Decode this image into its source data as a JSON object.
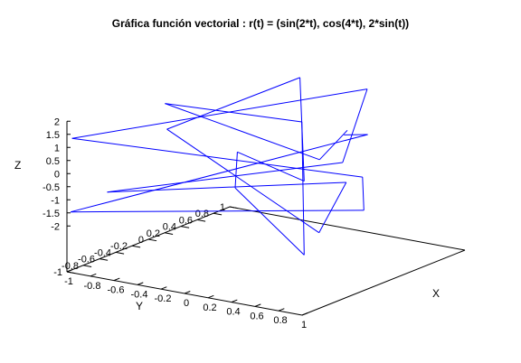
{
  "chart_data": {
    "type": "line",
    "title": "Gráfica función vectorial : r(t) = (sin(2*t), cos(4*t), 2*sin(t))",
    "xlabel": "X",
    "ylabel": "Y",
    "zlabel": "Z",
    "x_ticks": [
      "-1",
      "-0.8",
      "-0.6",
      "-0.4",
      "-0.2",
      "0",
      "0.2",
      "0.4",
      "0.6",
      "0.8",
      "1"
    ],
    "y_ticks": [
      "1",
      "0.8",
      "0.6",
      "0.4",
      "0.2",
      "0",
      "-0.2",
      "-0.4",
      "-0.6",
      "-0.8",
      "-1"
    ],
    "z_ticks": [
      "2",
      "1.5",
      "1",
      "0.5",
      "0",
      "-0.5",
      "-1",
      "-1.5",
      "-2"
    ],
    "xlim": [
      -1,
      1
    ],
    "ylim": [
      -1,
      1
    ],
    "zlim": [
      -2,
      2
    ],
    "series": [
      {
        "color": "#0000ff",
        "points": [
          {
            "x": 0.0,
            "y": 1.0,
            "z": 0.0
          },
          {
            "x": 0.909,
            "y": -0.654,
            "z": 1.683
          },
          {
            "x": -0.757,
            "y": -0.146,
            "z": 1.819
          },
          {
            "x": -0.279,
            "y": 0.844,
            "z": 0.282
          },
          {
            "x": 0.989,
            "y": -0.958,
            "z": -1.514
          },
          {
            "x": -0.544,
            "y": 0.408,
            "z": -1.918
          },
          {
            "x": -0.537,
            "y": 0.424,
            "z": -0.559
          },
          {
            "x": 0.991,
            "y": -0.962,
            "z": 1.314
          },
          {
            "x": -0.288,
            "y": 0.834,
            "z": 1.979
          },
          {
            "x": -0.751,
            "y": -0.132,
            "z": 0.824
          },
          {
            "x": 0.913,
            "y": -0.667,
            "z": -1.088
          },
          {
            "x": -0.009,
            "y": 1.0,
            "z": -2.0
          },
          {
            "x": -0.906,
            "y": -0.641,
            "z": -1.073
          },
          {
            "x": 0.763,
            "y": -0.16,
            "z": 0.84
          },
          {
            "x": 0.271,
            "y": 0.853,
            "z": 1.981
          },
          {
            "x": -0.988,
            "y": -0.954,
            "z": 1.301
          },
          {
            "x": 0.551,
            "y": 0.391,
            "z": -0.576
          },
          {
            "x": 0.529,
            "y": 0.439,
            "z": -1.923
          },
          {
            "x": -0.992,
            "y": -0.966,
            "z": -1.501
          },
          {
            "x": 0.296,
            "y": 0.824,
            "z": 0.3
          },
          {
            "x": 0.745,
            "y": -0.118,
            "z": 1.826
          }
        ]
      }
    ]
  }
}
